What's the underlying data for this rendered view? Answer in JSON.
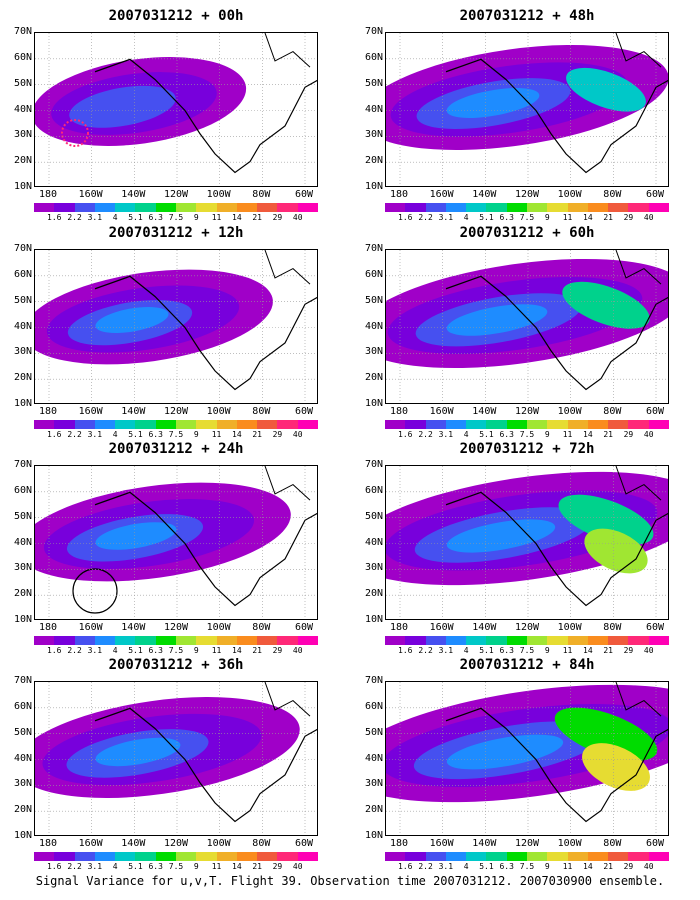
{
  "panels": [
    {
      "title": "2007031212 + 00h",
      "intensity": 0.15
    },
    {
      "title": "2007031212 + 48h",
      "intensity": 0.55
    },
    {
      "title": "2007031212 + 12h",
      "intensity": 0.3
    },
    {
      "title": "2007031212 + 60h",
      "intensity": 0.65
    },
    {
      "title": "2007031212 + 24h",
      "intensity": 0.4
    },
    {
      "title": "2007031212 + 72h",
      "intensity": 0.75
    },
    {
      "title": "2007031212 + 36h",
      "intensity": 0.45
    },
    {
      "title": "2007031212 + 84h",
      "intensity": 0.85
    }
  ],
  "lat_labels": [
    "70N",
    "60N",
    "50N",
    "40N",
    "30N",
    "20N",
    "10N"
  ],
  "lon_labels": [
    "180",
    "160W",
    "140W",
    "120W",
    "100W",
    "80W",
    "60W"
  ],
  "colorbar": {
    "labels": [
      "1.6",
      "2.2",
      "3.1",
      "4",
      "5.1",
      "6.3",
      "7.5",
      "9",
      "11",
      "14",
      "21",
      "29",
      "40"
    ],
    "colors": [
      "#a000c8",
      "#7800dc",
      "#4650f0",
      "#1e8cff",
      "#00c8c8",
      "#00d28c",
      "#00dc00",
      "#a0e632",
      "#e6dc32",
      "#f0af28",
      "#fa8c1e",
      "#f05a3c",
      "#ff2878",
      "#ff00b4"
    ]
  },
  "caption": "Signal Variance for u,v,T. Flight 39. Observation time 2007031212. 2007030900 ensemble."
}
